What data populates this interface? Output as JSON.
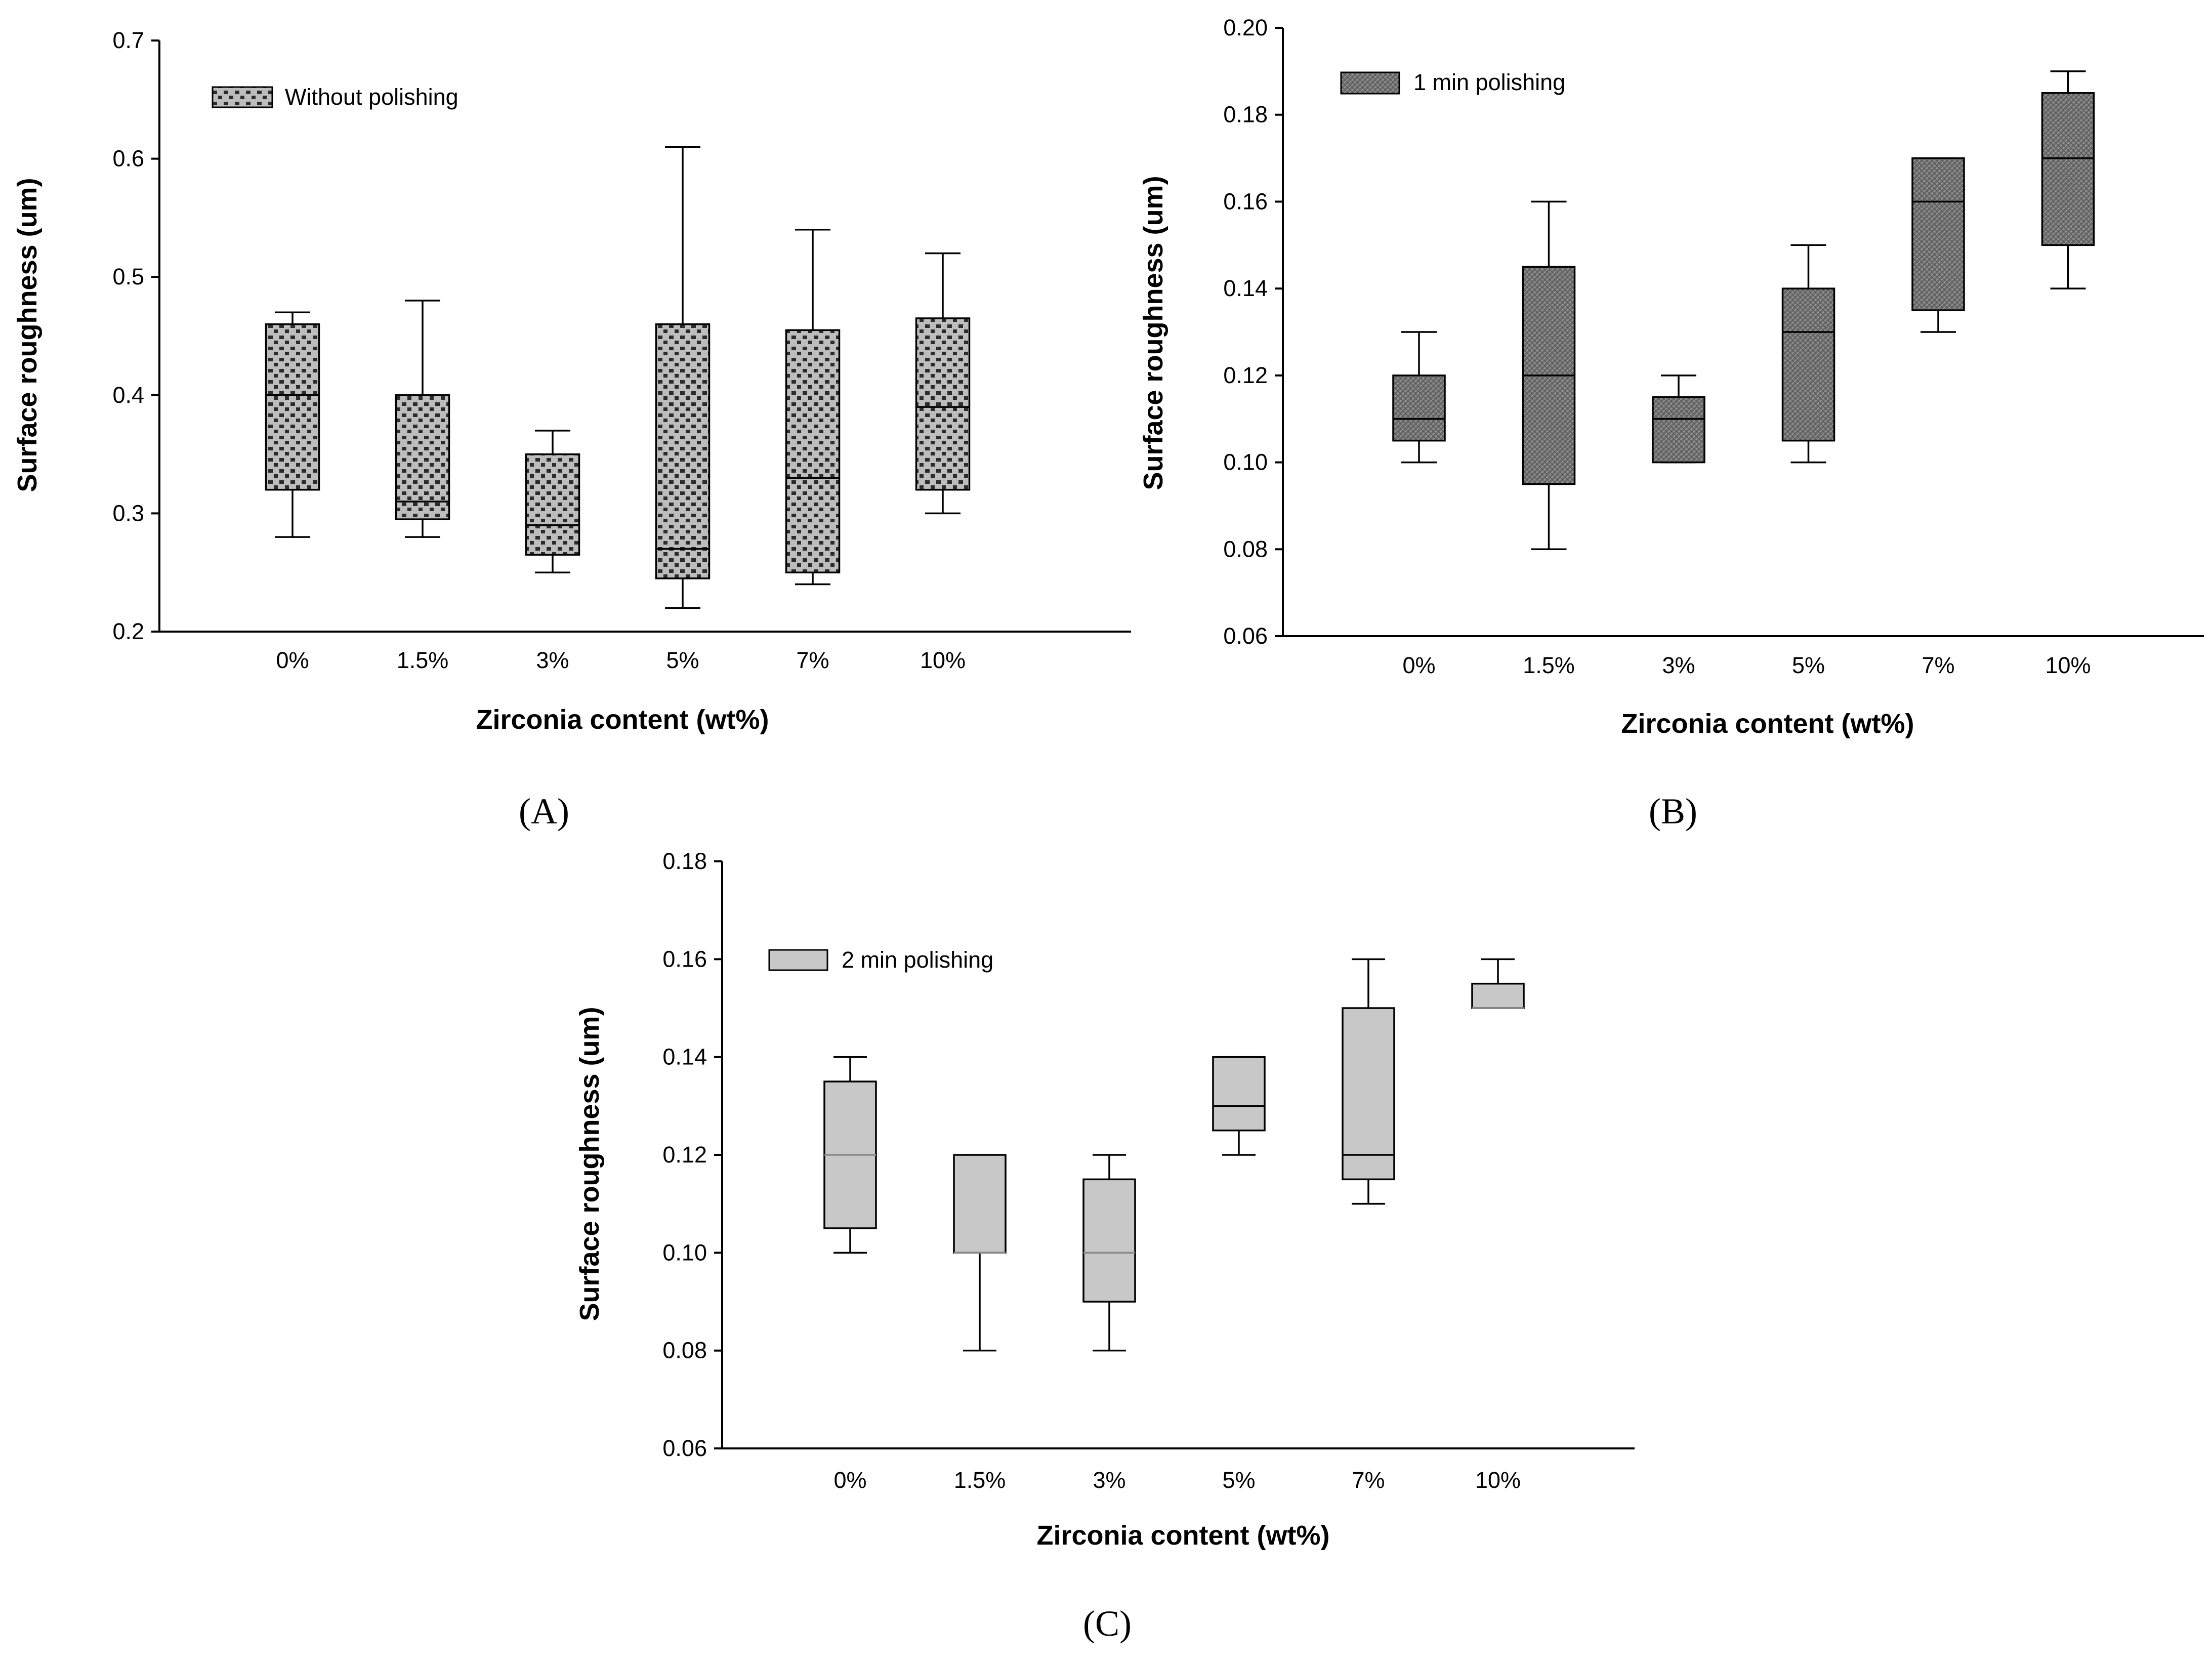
{
  "colors": {
    "panel_a_fill": "#bdbdbd",
    "panel_a_dots": "#2b2b2b",
    "panel_b_fill": "#6e6e6e",
    "panel_b_hatch": "#9a9a9a",
    "panel_c_fill": "#c8c8c8",
    "median_dark": "#000000",
    "median_light": "#8a8a8a"
  },
  "chart_data": [
    {
      "panel": "(A)",
      "type": "box",
      "xlabel": "Zirconia content (wt%)",
      "ylabel": "Surface roughness (um)",
      "ylim": [
        0.2,
        0.7
      ],
      "yticks": [
        "0.2",
        "0.3",
        "0.4",
        "0.5",
        "0.6",
        "0.7"
      ],
      "categories": [
        "0%",
        "1.5%",
        "3%",
        "5%",
        "7%",
        "10%"
      ],
      "legend": "Without polishing",
      "legend_position": "top-left",
      "grid": false,
      "series": [
        {
          "name": "Without polishing",
          "boxes": [
            {
              "min": 0.28,
              "q1": 0.32,
              "median": 0.4,
              "q3": 0.46,
              "max": 0.47
            },
            {
              "min": 0.28,
              "q1": 0.295,
              "median": 0.31,
              "q3": 0.4,
              "max": 0.48
            },
            {
              "min": 0.25,
              "q1": 0.265,
              "median": 0.29,
              "q3": 0.35,
              "max": 0.37
            },
            {
              "min": 0.22,
              "q1": 0.245,
              "median": 0.27,
              "q3": 0.46,
              "max": 0.61
            },
            {
              "min": 0.24,
              "q1": 0.25,
              "median": 0.33,
              "q3": 0.455,
              "max": 0.54
            },
            {
              "min": 0.3,
              "q1": 0.32,
              "median": 0.39,
              "q3": 0.465,
              "max": 0.52
            }
          ]
        }
      ]
    },
    {
      "panel": "(B)",
      "type": "box",
      "xlabel": "Zirconia content (wt%)",
      "ylabel": "Surface roughness (um)",
      "ylim": [
        0.06,
        0.2
      ],
      "yticks": [
        "0.06",
        "0.08",
        "0.10",
        "0.12",
        "0.14",
        "0.16",
        "0.18",
        "0.20"
      ],
      "categories": [
        "0%",
        "1.5%",
        "3%",
        "5%",
        "7%",
        "10%"
      ],
      "legend": "1 min polishing",
      "legend_position": "top-left",
      "grid": false,
      "series": [
        {
          "name": "1 min polishing",
          "boxes": [
            {
              "min": 0.1,
              "q1": 0.105,
              "median": 0.11,
              "q3": 0.12,
              "max": 0.13
            },
            {
              "min": 0.08,
              "q1": 0.095,
              "median": 0.12,
              "q3": 0.145,
              "max": 0.16
            },
            {
              "min": 0.1,
              "q1": 0.1,
              "median": 0.11,
              "q3": 0.115,
              "max": 0.12
            },
            {
              "min": 0.1,
              "q1": 0.105,
              "median": 0.13,
              "q3": 0.14,
              "max": 0.15
            },
            {
              "min": 0.13,
              "q1": 0.135,
              "median": 0.16,
              "q3": 0.17,
              "max": 0.17
            },
            {
              "min": 0.14,
              "q1": 0.15,
              "median": 0.17,
              "q3": 0.185,
              "max": 0.19
            }
          ]
        }
      ]
    },
    {
      "panel": "(C)",
      "type": "box",
      "xlabel": "Zirconia content (wt%)",
      "ylabel": "Surface roughness (um)",
      "ylim": [
        0.06,
        0.18
      ],
      "yticks": [
        "0.06",
        "0.08",
        "0.10",
        "0.12",
        "0.14",
        "0.16",
        "0.18"
      ],
      "categories": [
        "0%",
        "1.5%",
        "3%",
        "5%",
        "7%",
        "10%"
      ],
      "legend": "2 min polishing",
      "legend_position": "top-left",
      "grid": false,
      "series": [
        {
          "name": "2 min polishing",
          "boxes": [
            {
              "min": 0.1,
              "q1": 0.105,
              "median": 0.12,
              "q3": 0.135,
              "max": 0.14
            },
            {
              "min": 0.08,
              "q1": 0.1,
              "median": 0.1,
              "q3": 0.12,
              "max": 0.12
            },
            {
              "min": 0.08,
              "q1": 0.09,
              "median": 0.1,
              "q3": 0.115,
              "max": 0.12
            },
            {
              "min": 0.12,
              "q1": 0.125,
              "median": 0.13,
              "q3": 0.14,
              "max": 0.14
            },
            {
              "min": 0.11,
              "q1": 0.115,
              "median": 0.12,
              "q3": 0.15,
              "max": 0.16
            },
            {
              "min": 0.15,
              "q1": 0.15,
              "median": 0.15,
              "q3": 0.155,
              "max": 0.16
            }
          ]
        }
      ]
    }
  ]
}
